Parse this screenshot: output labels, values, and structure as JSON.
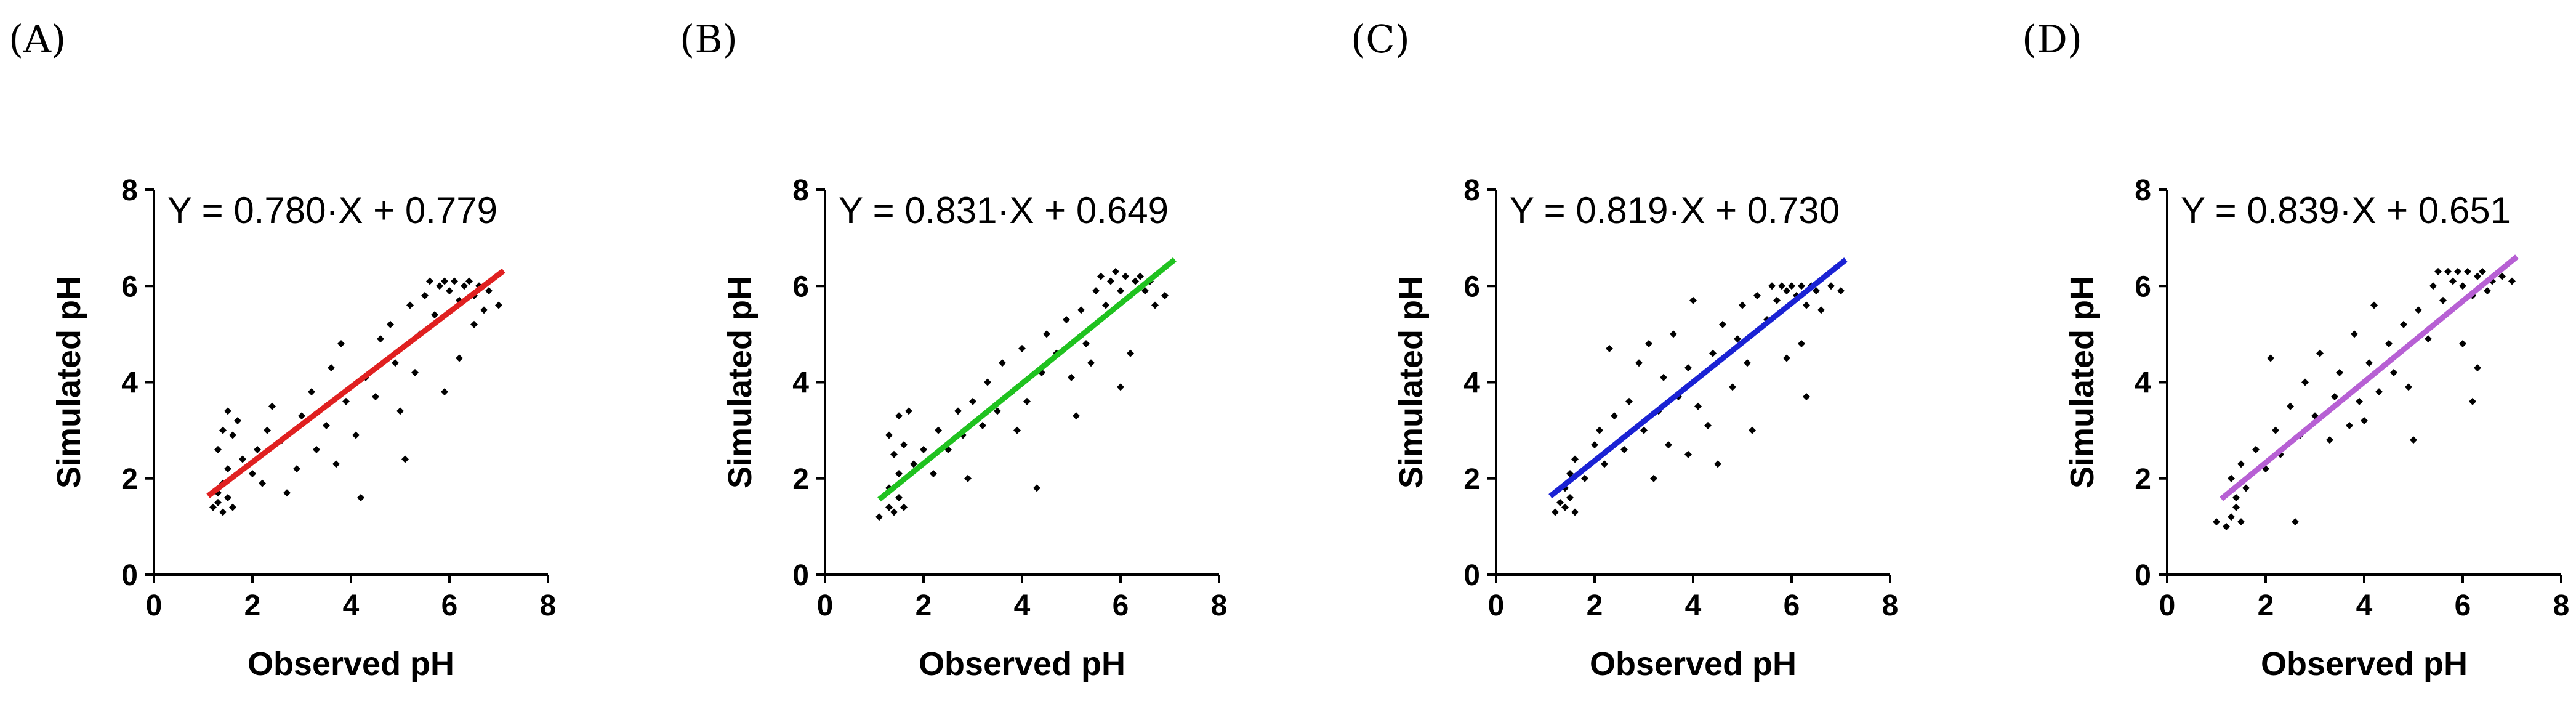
{
  "chart_data": [
    {
      "type": "scatter",
      "panel_label": "(A)",
      "equation": "Y = 0.780·X + 0.779",
      "slope": 0.78,
      "intercept": 0.779,
      "fit_color": "#e02020",
      "fit_range": [
        1.1,
        7.1
      ],
      "xlabel": "Observed pH",
      "ylabel": "Simulated pH",
      "xlim": [
        0,
        8
      ],
      "ylim": [
        0,
        8
      ],
      "xticks": [
        "0",
        "2",
        "4",
        "6",
        "8"
      ],
      "yticks": [
        "0",
        "2",
        "4",
        "6",
        "8"
      ],
      "points": [
        [
          1.2,
          1.4
        ],
        [
          1.3,
          1.5
        ],
        [
          1.4,
          1.3
        ],
        [
          1.5,
          1.6
        ],
        [
          1.3,
          1.7
        ],
        [
          1.6,
          1.4
        ],
        [
          1.4,
          1.9
        ],
        [
          1.5,
          2.2
        ],
        [
          1.3,
          2.6
        ],
        [
          1.4,
          3.0
        ],
        [
          1.5,
          3.4
        ],
        [
          1.6,
          2.9
        ],
        [
          1.7,
          3.2
        ],
        [
          1.8,
          2.4
        ],
        [
          2.0,
          2.1
        ],
        [
          2.1,
          2.6
        ],
        [
          2.3,
          3.0
        ],
        [
          2.4,
          3.5
        ],
        [
          2.6,
          2.8
        ],
        [
          2.7,
          1.7
        ],
        [
          2.9,
          2.2
        ],
        [
          3.0,
          3.3
        ],
        [
          3.2,
          3.8
        ],
        [
          3.3,
          2.6
        ],
        [
          3.5,
          3.1
        ],
        [
          3.6,
          4.3
        ],
        [
          3.8,
          4.8
        ],
        [
          3.9,
          3.6
        ],
        [
          4.1,
          2.9
        ],
        [
          4.2,
          1.6
        ],
        [
          4.3,
          4.1
        ],
        [
          4.5,
          3.7
        ],
        [
          4.6,
          4.9
        ],
        [
          4.8,
          5.2
        ],
        [
          4.9,
          4.4
        ],
        [
          5.0,
          3.4
        ],
        [
          5.1,
          2.4
        ],
        [
          5.2,
          5.6
        ],
        [
          5.3,
          4.2
        ],
        [
          5.4,
          5.0
        ],
        [
          5.5,
          5.8
        ],
        [
          5.6,
          6.1
        ],
        [
          5.7,
          5.4
        ],
        [
          5.8,
          6.0
        ],
        [
          5.9,
          6.1
        ],
        [
          6.0,
          5.9
        ],
        [
          6.1,
          6.1
        ],
        [
          6.2,
          5.7
        ],
        [
          6.3,
          6.0
        ],
        [
          6.4,
          6.1
        ],
        [
          6.5,
          5.8
        ],
        [
          6.6,
          6.0
        ],
        [
          6.7,
          5.5
        ],
        [
          6.8,
          5.9
        ],
        [
          7.0,
          5.6
        ],
        [
          5.9,
          3.8
        ],
        [
          6.2,
          4.5
        ],
        [
          6.5,
          5.2
        ],
        [
          2.2,
          1.9
        ],
        [
          3.7,
          2.3
        ]
      ]
    },
    {
      "type": "scatter",
      "panel_label": "(B)",
      "equation": "Y = 0.831·X + 0.649",
      "slope": 0.831,
      "intercept": 0.649,
      "fit_color": "#1fc21f",
      "fit_range": [
        1.1,
        7.1
      ],
      "xlabel": "Observed pH",
      "ylabel": "Simulated pH",
      "xlim": [
        0,
        8
      ],
      "ylim": [
        0,
        8
      ],
      "xticks": [
        "0",
        "2",
        "4",
        "6",
        "8"
      ],
      "yticks": [
        "0",
        "2",
        "4",
        "6",
        "8"
      ],
      "points": [
        [
          1.1,
          1.2
        ],
        [
          1.3,
          1.4
        ],
        [
          1.4,
          1.3
        ],
        [
          1.5,
          1.6
        ],
        [
          1.6,
          1.4
        ],
        [
          1.3,
          1.8
        ],
        [
          1.5,
          2.1
        ],
        [
          1.4,
          2.5
        ],
        [
          1.3,
          2.9
        ],
        [
          1.5,
          3.3
        ],
        [
          1.6,
          2.7
        ],
        [
          1.8,
          2.3
        ],
        [
          2.0,
          2.6
        ],
        [
          2.2,
          2.1
        ],
        [
          2.3,
          3.0
        ],
        [
          2.5,
          2.6
        ],
        [
          2.7,
          3.4
        ],
        [
          2.8,
          2.9
        ],
        [
          3.0,
          3.6
        ],
        [
          3.2,
          3.1
        ],
        [
          3.3,
          4.0
        ],
        [
          3.5,
          3.4
        ],
        [
          3.6,
          4.4
        ],
        [
          3.8,
          3.8
        ],
        [
          4.0,
          4.7
        ],
        [
          4.1,
          3.6
        ],
        [
          4.3,
          1.8
        ],
        [
          4.4,
          4.2
        ],
        [
          4.5,
          5.0
        ],
        [
          4.7,
          4.6
        ],
        [
          4.9,
          5.3
        ],
        [
          5.0,
          4.1
        ],
        [
          5.1,
          3.3
        ],
        [
          5.2,
          5.5
        ],
        [
          5.3,
          4.8
        ],
        [
          5.5,
          5.9
        ],
        [
          5.6,
          6.2
        ],
        [
          5.7,
          5.6
        ],
        [
          5.8,
          6.1
        ],
        [
          5.9,
          6.3
        ],
        [
          6.0,
          5.9
        ],
        [
          6.1,
          6.2
        ],
        [
          6.2,
          5.8
        ],
        [
          6.3,
          6.1
        ],
        [
          6.4,
          6.2
        ],
        [
          6.5,
          5.9
        ],
        [
          6.6,
          6.1
        ],
        [
          6.7,
          5.6
        ],
        [
          6.9,
          5.8
        ],
        [
          6.2,
          4.6
        ],
        [
          6.0,
          3.9
        ],
        [
          5.4,
          4.4
        ],
        [
          2.9,
          2.0
        ],
        [
          3.9,
          3.0
        ],
        [
          1.7,
          3.4
        ]
      ]
    },
    {
      "type": "scatter",
      "panel_label": "(C)",
      "equation": "Y = 0.819·X + 0.730",
      "slope": 0.819,
      "intercept": 0.73,
      "fit_color": "#1a22d4",
      "fit_range": [
        1.1,
        7.1
      ],
      "xlabel": "Observed pH",
      "ylabel": "Simulated pH",
      "xlim": [
        0,
        8
      ],
      "ylim": [
        0,
        8
      ],
      "xticks": [
        "0",
        "2",
        "4",
        "6",
        "8"
      ],
      "yticks": [
        "0",
        "2",
        "4",
        "6",
        "8"
      ],
      "points": [
        [
          1.2,
          1.3
        ],
        [
          1.3,
          1.5
        ],
        [
          1.4,
          1.4
        ],
        [
          1.5,
          1.6
        ],
        [
          1.6,
          1.3
        ],
        [
          1.4,
          1.8
        ],
        [
          1.5,
          2.1
        ],
        [
          1.6,
          2.4
        ],
        [
          1.8,
          2.0
        ],
        [
          2.0,
          2.7
        ],
        [
          2.1,
          3.0
        ],
        [
          2.2,
          2.3
        ],
        [
          2.3,
          4.7
        ],
        [
          2.4,
          3.3
        ],
        [
          2.6,
          2.6
        ],
        [
          2.7,
          3.6
        ],
        [
          2.9,
          4.4
        ],
        [
          3.0,
          3.0
        ],
        [
          3.1,
          4.8
        ],
        [
          3.3,
          3.4
        ],
        [
          3.4,
          4.1
        ],
        [
          3.5,
          2.7
        ],
        [
          3.6,
          5.0
        ],
        [
          3.7,
          3.7
        ],
        [
          3.9,
          4.3
        ],
        [
          4.0,
          5.7
        ],
        [
          4.1,
          3.5
        ],
        [
          4.3,
          3.1
        ],
        [
          4.4,
          4.6
        ],
        [
          4.5,
          2.3
        ],
        [
          4.6,
          5.2
        ],
        [
          4.8,
          3.9
        ],
        [
          4.9,
          4.9
        ],
        [
          5.0,
          5.6
        ],
        [
          5.1,
          4.4
        ],
        [
          5.2,
          3.0
        ],
        [
          5.3,
          5.8
        ],
        [
          5.5,
          5.3
        ],
        [
          5.6,
          6.0
        ],
        [
          5.7,
          5.7
        ],
        [
          5.8,
          6.0
        ],
        [
          5.9,
          5.9
        ],
        [
          6.0,
          6.0
        ],
        [
          6.1,
          5.8
        ],
        [
          6.2,
          6.0
        ],
        [
          6.3,
          5.6
        ],
        [
          6.4,
          6.0
        ],
        [
          6.5,
          5.9
        ],
        [
          6.6,
          5.5
        ],
        [
          6.8,
          6.0
        ],
        [
          7.0,
          5.9
        ],
        [
          6.2,
          4.8
        ],
        [
          5.9,
          4.5
        ],
        [
          6.3,
          3.7
        ],
        [
          3.9,
          2.5
        ],
        [
          3.2,
          2.0
        ]
      ]
    },
    {
      "type": "scatter",
      "panel_label": "(D)",
      "equation": "Y = 0.839·X + 0.651",
      "slope": 0.839,
      "intercept": 0.651,
      "fit_color": "#b760d4",
      "fit_range": [
        1.1,
        7.1
      ],
      "xlabel": "Observed pH",
      "ylabel": "Simulated pH",
      "xlim": [
        0,
        8
      ],
      "ylim": [
        0,
        8
      ],
      "xticks": [
        "0",
        "2",
        "4",
        "6",
        "8"
      ],
      "yticks": [
        "0",
        "2",
        "4",
        "6",
        "8"
      ],
      "points": [
        [
          1.0,
          1.1
        ],
        [
          1.2,
          1.0
        ],
        [
          1.3,
          1.2
        ],
        [
          1.4,
          1.4
        ],
        [
          1.5,
          1.1
        ],
        [
          1.4,
          1.6
        ],
        [
          1.3,
          2.0
        ],
        [
          1.5,
          2.3
        ],
        [
          1.6,
          1.8
        ],
        [
          1.8,
          2.6
        ],
        [
          2.0,
          2.2
        ],
        [
          2.1,
          4.5
        ],
        [
          2.2,
          3.0
        ],
        [
          2.3,
          2.5
        ],
        [
          2.5,
          3.5
        ],
        [
          2.7,
          2.9
        ],
        [
          2.8,
          4.0
        ],
        [
          3.0,
          3.3
        ],
        [
          3.1,
          4.6
        ],
        [
          3.3,
          2.8
        ],
        [
          3.4,
          3.7
        ],
        [
          3.5,
          4.2
        ],
        [
          3.7,
          3.1
        ],
        [
          3.8,
          5.0
        ],
        [
          3.9,
          3.6
        ],
        [
          4.1,
          4.4
        ],
        [
          4.2,
          5.6
        ],
        [
          4.3,
          3.8
        ],
        [
          4.5,
          4.8
        ],
        [
          4.6,
          4.2
        ],
        [
          4.8,
          5.2
        ],
        [
          4.9,
          3.9
        ],
        [
          5.0,
          2.8
        ],
        [
          5.1,
          5.5
        ],
        [
          5.3,
          4.9
        ],
        [
          5.4,
          6.0
        ],
        [
          5.5,
          6.3
        ],
        [
          5.6,
          5.7
        ],
        [
          5.7,
          6.3
        ],
        [
          5.8,
          6.1
        ],
        [
          5.9,
          6.3
        ],
        [
          6.0,
          6.0
        ],
        [
          6.1,
          6.3
        ],
        [
          6.2,
          5.8
        ],
        [
          6.3,
          6.2
        ],
        [
          6.4,
          6.3
        ],
        [
          6.5,
          5.9
        ],
        [
          6.6,
          6.1
        ],
        [
          6.8,
          6.2
        ],
        [
          7.0,
          6.1
        ],
        [
          6.2,
          3.6
        ],
        [
          6.3,
          4.3
        ],
        [
          6.0,
          4.8
        ],
        [
          2.6,
          1.1
        ],
        [
          4.0,
          3.2
        ]
      ]
    }
  ]
}
